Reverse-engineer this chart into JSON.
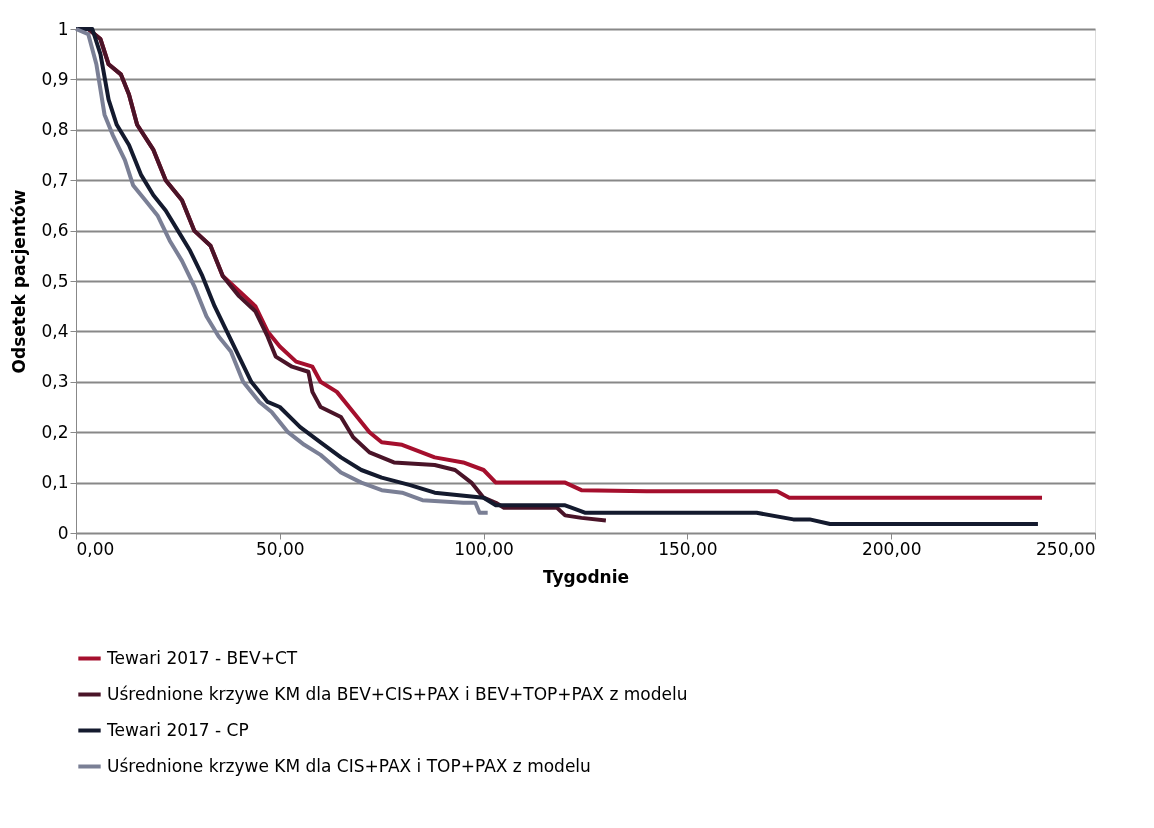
{
  "chart_data": {
    "type": "line",
    "xlabel": "Tygodnie",
    "ylabel": "Odsetek pacjentów",
    "xlim": [
      0,
      250
    ],
    "ylim": [
      0,
      1
    ],
    "xticks": [
      {
        "value": 0,
        "label": "0,00"
      },
      {
        "value": 50,
        "label": "50,00"
      },
      {
        "value": 100,
        "label": "100,00"
      },
      {
        "value": 150,
        "label": "150,00"
      },
      {
        "value": 200,
        "label": "200,00"
      },
      {
        "value": 250,
        "label": "250,00"
      }
    ],
    "yticks": [
      0,
      {
        "value": 0.1,
        "label": "0,1"
      },
      {
        "value": 0.2,
        "label": "0,2"
      },
      {
        "value": 0.3,
        "label": "0,3"
      },
      {
        "value": 0.4,
        "label": "0,4"
      },
      {
        "value": 0.5,
        "label": "0,5"
      },
      {
        "value": 0.6,
        "label": "0,6"
      },
      {
        "value": 0.7,
        "label": "0,7"
      },
      {
        "value": 0.8,
        "label": "0,8"
      },
      {
        "value": 0.9,
        "label": "0,9"
      },
      1
    ],
    "grid": "y",
    "legend": "bottom",
    "marker": "none",
    "line_style": "solid",
    "series": [
      {
        "name": "Tewari 2017 - BEV+CT",
        "color": "#a50f2d",
        "x": [
          0,
          3,
          6,
          8,
          11,
          13,
          15,
          19,
          22,
          26,
          29,
          33,
          36,
          40,
          44,
          47,
          50,
          54,
          58,
          60,
          64,
          68,
          72,
          75,
          80,
          88,
          95,
          100,
          103,
          110,
          120,
          124,
          140,
          172,
          175,
          237
        ],
        "values": [
          1,
          1,
          0.98,
          0.93,
          0.91,
          0.87,
          0.81,
          0.76,
          0.7,
          0.66,
          0.6,
          0.57,
          0.51,
          0.48,
          0.45,
          0.4,
          0.37,
          0.34,
          0.33,
          0.3,
          0.28,
          0.24,
          0.2,
          0.18,
          0.175,
          0.15,
          0.14,
          0.125,
          0.1,
          0.1,
          0.1,
          0.085,
          0.083,
          0.083,
          0.07,
          0.07
        ]
      },
      {
        "name": "Uśrednione krzywe KM dla BEV+CIS+PAX i BEV+TOP+PAX z modelu",
        "color": "#4a1428",
        "x": [
          0,
          3,
          6,
          8,
          11,
          13,
          15,
          19,
          22,
          26,
          29,
          33,
          36,
          40,
          44,
          47,
          49,
          53,
          57,
          58,
          60,
          65,
          68,
          72,
          78,
          88,
          93,
          97,
          100,
          103,
          105,
          118,
          120,
          124,
          130
        ],
        "values": [
          1,
          1,
          0.98,
          0.93,
          0.91,
          0.87,
          0.81,
          0.76,
          0.7,
          0.66,
          0.6,
          0.57,
          0.51,
          0.47,
          0.44,
          0.39,
          0.35,
          0.33,
          0.32,
          0.28,
          0.25,
          0.23,
          0.19,
          0.16,
          0.14,
          0.135,
          0.125,
          0.1,
          0.07,
          0.06,
          0.05,
          0.05,
          0.035,
          0.03,
          0.025
        ]
      },
      {
        "name": "Tewari 2017 - CP",
        "color": "#141a2e",
        "x": [
          0,
          4,
          6,
          8,
          10,
          13,
          16,
          19,
          22,
          25,
          28,
          31,
          34,
          37,
          40,
          43,
          47,
          50,
          55,
          60,
          65,
          70,
          75,
          82,
          88,
          100,
          103,
          120,
          125,
          167,
          176,
          180,
          185,
          236
        ],
        "values": [
          1,
          1,
          0.95,
          0.86,
          0.81,
          0.77,
          0.71,
          0.67,
          0.64,
          0.6,
          0.56,
          0.51,
          0.45,
          0.4,
          0.35,
          0.3,
          0.26,
          0.25,
          0.21,
          0.18,
          0.15,
          0.125,
          0.11,
          0.095,
          0.08,
          0.07,
          0.055,
          0.055,
          0.04,
          0.04,
          0.027,
          0.027,
          0.018,
          0.018
        ]
      },
      {
        "name": "Uśrednione krzywe KM dla CIS+PAX i TOP+PAX z modelu",
        "color": "#7a7f95",
        "x": [
          0,
          3,
          5,
          7,
          9,
          12,
          14,
          17,
          20,
          23,
          26,
          29,
          32,
          35,
          38,
          41,
          45,
          48,
          52,
          56,
          60,
          65,
          70,
          75,
          80,
          85,
          95,
          98,
          99,
          101
        ],
        "values": [
          1,
          0.99,
          0.93,
          0.83,
          0.79,
          0.74,
          0.69,
          0.66,
          0.63,
          0.58,
          0.54,
          0.49,
          0.43,
          0.39,
          0.36,
          0.3,
          0.26,
          0.24,
          0.2,
          0.175,
          0.155,
          0.12,
          0.1,
          0.085,
          0.08,
          0.065,
          0.06,
          0.06,
          0.04,
          0.04
        ]
      }
    ]
  }
}
